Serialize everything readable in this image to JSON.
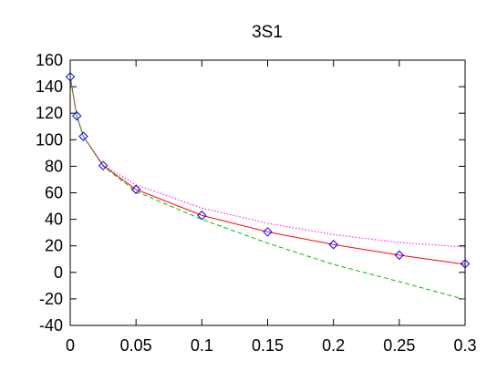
{
  "chart_data": {
    "type": "line",
    "title": "3S1",
    "xlabel": "",
    "ylabel": "",
    "xlim": [
      0,
      0.3
    ],
    "ylim": [
      -40,
      160
    ],
    "grid": false,
    "legend": "none",
    "x_ticks": [
      0,
      0.05,
      0.1,
      0.15,
      0.2,
      0.25,
      0.3
    ],
    "x_tick_labels": [
      "0",
      "0.05",
      "0.1",
      "0.15",
      "0.2",
      "0.25",
      "0.3"
    ],
    "y_ticks": [
      -40,
      -20,
      0,
      20,
      40,
      60,
      80,
      100,
      120,
      140,
      160
    ],
    "y_tick_labels": [
      "-40",
      "-20",
      "0",
      "20",
      "40",
      "60",
      "80",
      "100",
      "120",
      "140",
      "160"
    ],
    "series": [
      {
        "style": "points",
        "marker": "diamond",
        "color": "#0000ff",
        "x": [
          0,
          0.005,
          0.01,
          0.025,
          0.05,
          0.1,
          0.15,
          0.2,
          0.25,
          0.3
        ],
        "y": [
          147.5,
          118,
          102.5,
          80.5,
          62.5,
          43,
          30.5,
          21,
          13,
          6.5
        ]
      },
      {
        "style": "solid",
        "color": "#ff0000",
        "x": [
          0,
          0.005,
          0.01,
          0.025,
          0.05,
          0.1,
          0.15,
          0.2,
          0.25,
          0.3
        ],
        "y": [
          147.5,
          118,
          102.5,
          80.5,
          62.5,
          43,
          30.5,
          21,
          13,
          6
        ]
      },
      {
        "style": "dotted",
        "color": "#ff00ff",
        "x": [
          0,
          0.005,
          0.01,
          0.025,
          0.05,
          0.1,
          0.15,
          0.2,
          0.25,
          0.3
        ],
        "y": [
          147.5,
          118,
          102.5,
          81,
          66,
          48.5,
          37,
          28.5,
          22.5,
          19
        ]
      },
      {
        "style": "dashed",
        "color": "#00c000",
        "x": [
          0,
          0.005,
          0.01,
          0.025,
          0.05,
          0.1,
          0.15,
          0.2,
          0.25,
          0.3
        ],
        "y": [
          147.5,
          118,
          102.5,
          80,
          61,
          40,
          22,
          6,
          -7,
          -20.5
        ]
      }
    ]
  }
}
